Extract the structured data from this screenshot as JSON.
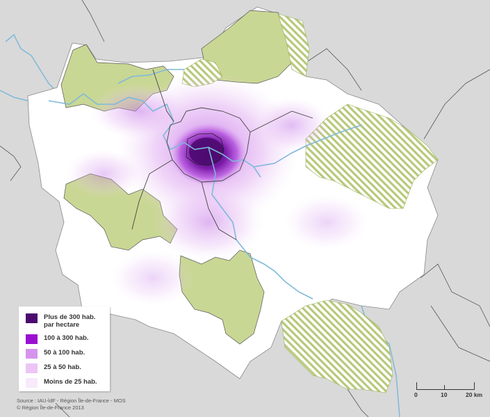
{
  "legend": {
    "items": [
      {
        "label": "Plus de 300 hab.\npar hectare",
        "color": "#4b0a6e"
      },
      {
        "label": "100 à 300 hab.",
        "color": "#9b0fd1"
      },
      {
        "label": "50 à 100 hab.",
        "color": "#d693ee"
      },
      {
        "label": "25 à 50 hab.",
        "color": "#ecc5f5"
      },
      {
        "label": "Moins de 25 hab.",
        "color": "#f8e9fb"
      }
    ]
  },
  "source": {
    "line1": "Source : IAU-îdF - Région Île-de-France - MOS",
    "line2": "© Région Île-de-France 2013"
  },
  "scale": {
    "ticks": [
      "0",
      "10",
      "20 km"
    ]
  },
  "colors": {
    "background": "#d9d9d9",
    "region_fill": "#ffffff",
    "forest_fill": "#c9d794",
    "hatch": "#b6c97a",
    "river": "#7eb9d9",
    "border": "#555555"
  }
}
